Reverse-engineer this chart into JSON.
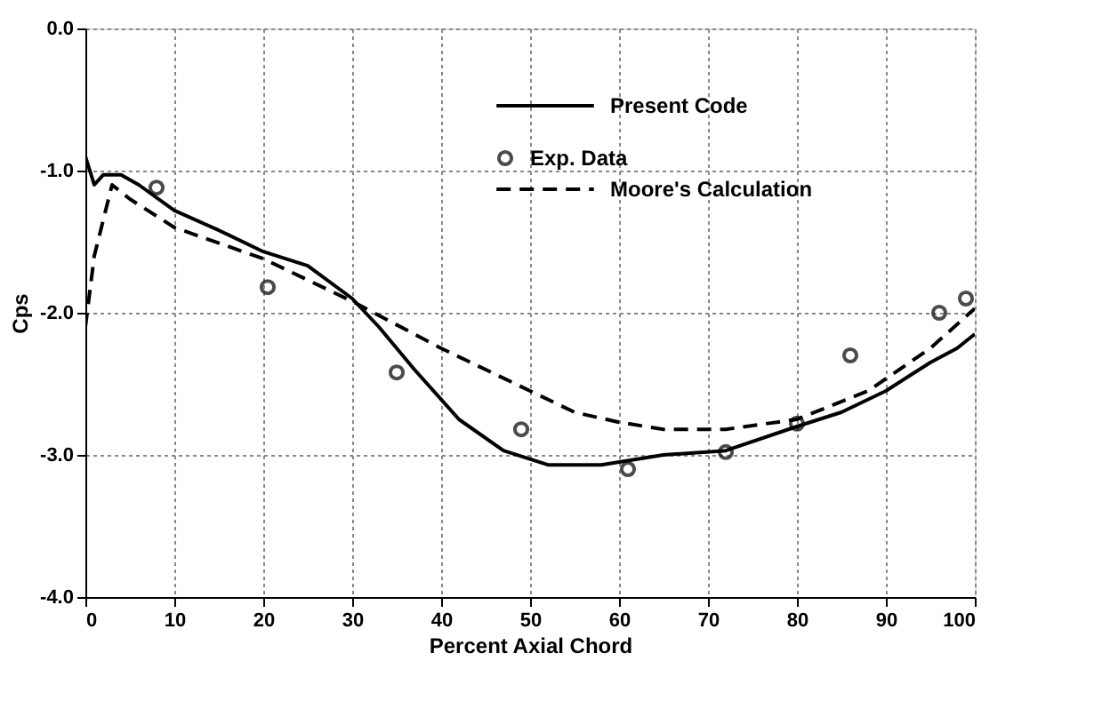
{
  "chart_data": {
    "type": "line",
    "xlabel": "Percent Axial Chord",
    "ylabel": "Cps",
    "xlim": [
      0,
      100
    ],
    "xticks": [
      0,
      10,
      20,
      30,
      40,
      50,
      60,
      70,
      80,
      90,
      100
    ],
    "ylim": [
      -4.0,
      0.0
    ],
    "yticks": [
      {
        "value": -4,
        "label": "-4.0"
      },
      {
        "value": -3,
        "label": "-3.0"
      },
      {
        "value": -2,
        "label": "-2.0"
      },
      {
        "value": -1,
        "label": "-1.0"
      },
      {
        "value": 0,
        "label": "0.0"
      }
    ],
    "grid": true,
    "legend": "top right",
    "series": [
      {
        "name": "Present Code",
        "type": "line",
        "line_style": "solid",
        "color": "#000000",
        "x": [
          0,
          1,
          2,
          4,
          6,
          10,
          15,
          20,
          25,
          30,
          33,
          37,
          42,
          47,
          52,
          58,
          65,
          72,
          80,
          85,
          90,
          95,
          98,
          100
        ],
        "values": [
          -0.9,
          -1.1,
          -1.03,
          -1.03,
          -1.1,
          -1.28,
          -1.42,
          -1.57,
          -1.67,
          -1.9,
          -2.1,
          -2.4,
          -2.75,
          -2.97,
          -3.07,
          -3.07,
          -3.0,
          -2.97,
          -2.8,
          -2.7,
          -2.55,
          -2.35,
          -2.25,
          -2.15
        ]
      },
      {
        "name": "Moore's Calculation",
        "type": "line",
        "line_style": "dashed",
        "color": "#000000",
        "x": [
          0,
          1,
          3,
          5,
          10,
          20,
          30,
          40,
          50,
          55,
          60,
          65,
          72,
          80,
          88,
          95,
          100
        ],
        "values": [
          -2.1,
          -1.6,
          -1.1,
          -1.2,
          -1.4,
          -1.62,
          -1.92,
          -2.25,
          -2.55,
          -2.7,
          -2.77,
          -2.82,
          -2.82,
          -2.75,
          -2.55,
          -2.25,
          -1.97
        ]
      },
      {
        "name": "Exp. Data",
        "type": "scatter",
        "marker": "circle",
        "color": "#000000",
        "x": [
          8,
          20.5,
          35,
          49,
          61,
          72,
          80,
          86,
          96,
          99
        ],
        "values": [
          -1.12,
          -1.82,
          -2.42,
          -2.82,
          -3.1,
          -2.98,
          -2.78,
          -2.3,
          -2.0,
          -1.9
        ]
      }
    ]
  }
}
